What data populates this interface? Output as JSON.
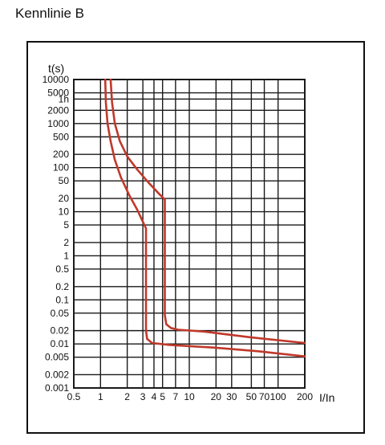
{
  "heading": "Kennlinie B",
  "chart_data": {
    "type": "line",
    "title": "Kennlinie B",
    "xlabel": "I/In",
    "ylabel": "t(s)",
    "xscale": "log",
    "yscale": "log",
    "xlim": [
      0.5,
      200
    ],
    "ylim": [
      0.001,
      10000
    ],
    "grid": true,
    "x_ticks": [
      {
        "value": 0.5,
        "label": "0.5"
      },
      {
        "value": 1,
        "label": "1"
      },
      {
        "value": 2,
        "label": "2"
      },
      {
        "value": 3,
        "label": "3"
      },
      {
        "value": 4,
        "label": "4"
      },
      {
        "value": 5,
        "label": "5"
      },
      {
        "value": 7,
        "label": "7"
      },
      {
        "value": 10,
        "label": "10"
      },
      {
        "value": 20,
        "label": "20"
      },
      {
        "value": 30,
        "label": "30"
      },
      {
        "value": 50,
        "label": "50"
      },
      {
        "value": 70,
        "label": "70"
      },
      {
        "value": 100,
        "label": "100"
      },
      {
        "value": 200,
        "label": "200"
      }
    ],
    "y_ticks": [
      {
        "value": 10000,
        "label": "10000"
      },
      {
        "value": 5000,
        "label": "5000"
      },
      {
        "value": 3600,
        "label": "1h"
      },
      {
        "value": 2000,
        "label": "2000"
      },
      {
        "value": 1000,
        "label": "1000"
      },
      {
        "value": 500,
        "label": "500"
      },
      {
        "value": 200,
        "label": "200"
      },
      {
        "value": 100,
        "label": "100"
      },
      {
        "value": 50,
        "label": "50"
      },
      {
        "value": 20,
        "label": "20"
      },
      {
        "value": 10,
        "label": "10"
      },
      {
        "value": 5,
        "label": "5"
      },
      {
        "value": 2,
        "label": "2"
      },
      {
        "value": 1,
        "label": "1"
      },
      {
        "value": 0.5,
        "label": "0.5"
      },
      {
        "value": 0.2,
        "label": "0.2"
      },
      {
        "value": 0.1,
        "label": "0.1"
      },
      {
        "value": 0.05,
        "label": "0.05"
      },
      {
        "value": 0.02,
        "label": "0.02"
      },
      {
        "value": 0.01,
        "label": "0.01"
      },
      {
        "value": 0.005,
        "label": "0.005"
      },
      {
        "value": 0.002,
        "label": "0.002"
      },
      {
        "value": 0.001,
        "label": "0.001"
      }
    ],
    "line_color": "#c0392b",
    "grid_color": "#1a1a1a",
    "series": [
      {
        "points": [
          [
            1.13,
            10000
          ],
          [
            1.15,
            3000
          ],
          [
            1.2,
            1000
          ],
          [
            1.3,
            400
          ],
          [
            1.45,
            150
          ],
          [
            1.7,
            60
          ],
          [
            2.1,
            24
          ],
          [
            2.6,
            11
          ],
          [
            3.05,
            5.5
          ],
          [
            3.25,
            4.2
          ],
          [
            3.25,
            0.02
          ],
          [
            3.35,
            0.013
          ],
          [
            3.8,
            0.0105
          ],
          [
            6,
            0.0095
          ],
          [
            20,
            0.0082
          ],
          [
            60,
            0.0068
          ],
          [
            200,
            0.0052
          ]
        ]
      },
      {
        "points": [
          [
            1.3,
            10000
          ],
          [
            1.35,
            3000
          ],
          [
            1.45,
            1000
          ],
          [
            1.65,
            400
          ],
          [
            2.0,
            180
          ],
          [
            2.6,
            90
          ],
          [
            3.5,
            45
          ],
          [
            4.6,
            25
          ],
          [
            5.3,
            19
          ],
          [
            5.3,
            0.045
          ],
          [
            5.5,
            0.028
          ],
          [
            6.2,
            0.023
          ],
          [
            7.5,
            0.021
          ],
          [
            15,
            0.019
          ],
          [
            50,
            0.014
          ],
          [
            200,
            0.0105
          ]
        ]
      }
    ]
  }
}
